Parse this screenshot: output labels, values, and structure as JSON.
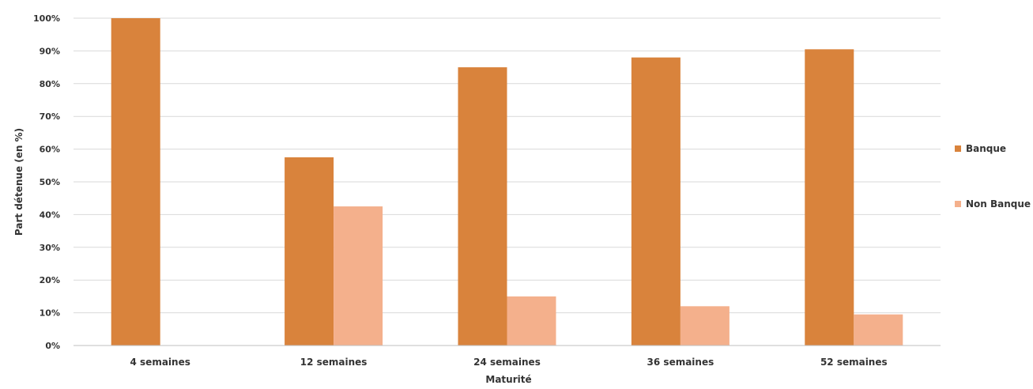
{
  "chart_data": {
    "type": "bar",
    "categories": [
      "4  semaines",
      "12 semaines",
      "24 semaines",
      "36 semaines",
      "52 semaines"
    ],
    "series": [
      {
        "name": "Banque",
        "values": [
          100,
          57.5,
          85,
          88,
          90.5
        ],
        "color": "#D9833C"
      },
      {
        "name": "Non Banque",
        "values": [
          0,
          42.5,
          15,
          12,
          9.5
        ],
        "color": "#F4B08C"
      }
    ],
    "xlabel": "Maturité",
    "ylabel": "Part détenue (en %)",
    "ylim": [
      0,
      100
    ],
    "yticks": [
      "0%",
      "10%",
      "20%",
      "30%",
      "40%",
      "50%",
      "60%",
      "70%",
      "80%",
      "90%",
      "100%"
    ],
    "grid": true,
    "legend": "right"
  }
}
